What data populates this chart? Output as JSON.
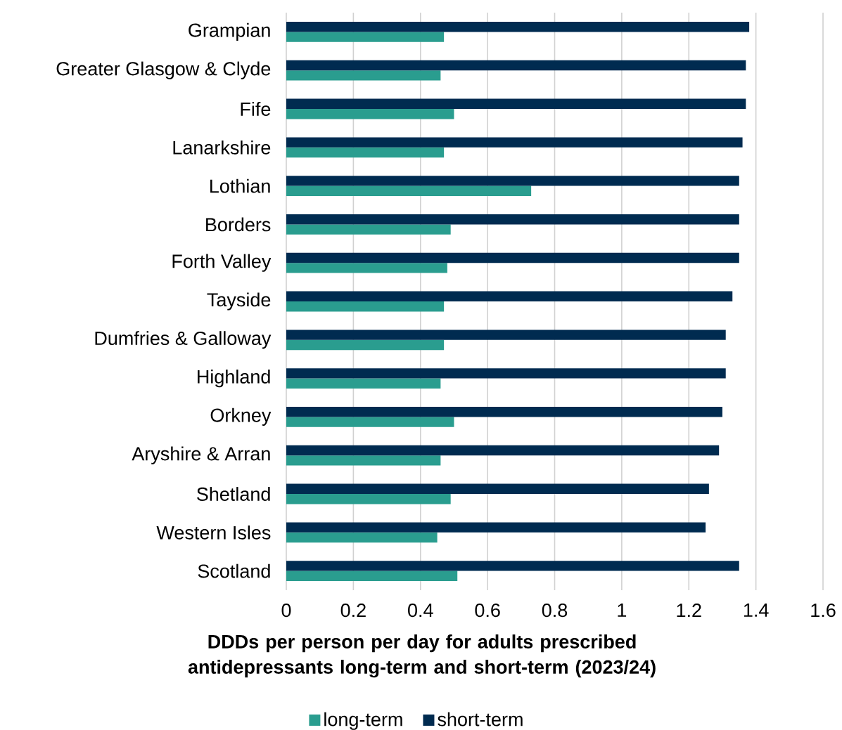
{
  "chart_data": {
    "type": "bar",
    "orientation": "horizontal",
    "xlabel": "DDDs per person per day for adults prescribed antidepressants long-term and short-term (2023/24)",
    "categories": [
      "Grampian",
      "Greater Glasgow & Clyde",
      "Fife",
      "Lanarkshire",
      "Lothian",
      "Borders",
      "Forth Valley",
      "Tayside",
      "Dumfries & Galloway",
      "Highland",
      "Orkney",
      "Aryshire & Arran",
      "Shetland",
      "Western Isles",
      "Scotland"
    ],
    "series": [
      {
        "name": "long-term",
        "color": "#2a9d8f",
        "values": [
          0.47,
          0.46,
          0.5,
          0.47,
          0.73,
          0.49,
          0.48,
          0.47,
          0.47,
          0.46,
          0.5,
          0.46,
          0.49,
          0.45,
          0.51
        ]
      },
      {
        "name": "short-term",
        "color": "#002b50",
        "values": [
          1.38,
          1.37,
          1.37,
          1.36,
          1.35,
          1.35,
          1.35,
          1.33,
          1.31,
          1.31,
          1.3,
          1.29,
          1.26,
          1.25,
          1.35
        ]
      }
    ],
    "xlim": [
      0,
      1.6
    ],
    "xticks": [
      0,
      0.2,
      0.4,
      0.6,
      0.8,
      1,
      1.2,
      1.4,
      1.6
    ],
    "grid": "x",
    "legend": "bottom"
  }
}
